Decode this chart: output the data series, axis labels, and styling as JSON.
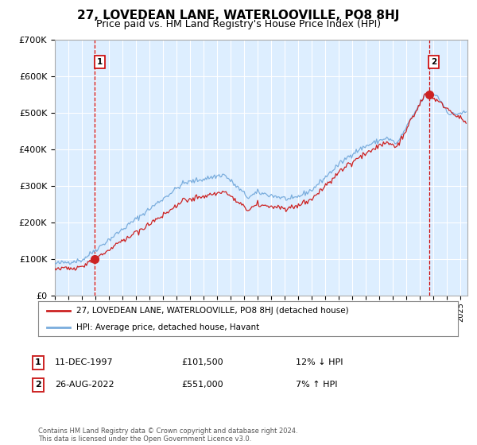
{
  "title": "27, LOVEDEAN LANE, WATERLOOVILLE, PO8 8HJ",
  "subtitle": "Price paid vs. HM Land Registry's House Price Index (HPI)",
  "sale1_date": "11-DEC-1997",
  "sale1_price": 101500,
  "sale1_hpi_rel": "12% ↓ HPI",
  "sale2_date": "26-AUG-2022",
  "sale2_price": 551000,
  "sale2_hpi_rel": "7% ↑ HPI",
  "sale1_year": 1997.95,
  "sale2_year": 2022.65,
  "legend_line1": "27, LOVEDEAN LANE, WATERLOOVILLE, PO8 8HJ (detached house)",
  "legend_line2": "HPI: Average price, detached house, Havant",
  "footer": "Contains HM Land Registry data © Crown copyright and database right 2024.\nThis data is licensed under the Open Government Licence v3.0.",
  "hpi_color": "#7aaddd",
  "price_color": "#cc2222",
  "plot_bg_color": "#ddeeff",
  "grid_color": "#ffffff",
  "dashed_color": "#cc0000",
  "fig_bg_color": "#ffffff",
  "ylim": [
    0,
    700000
  ],
  "yticks": [
    0,
    100000,
    200000,
    300000,
    400000,
    500000,
    600000,
    700000
  ],
  "xlim_start": 1995.0,
  "xlim_end": 2025.5
}
